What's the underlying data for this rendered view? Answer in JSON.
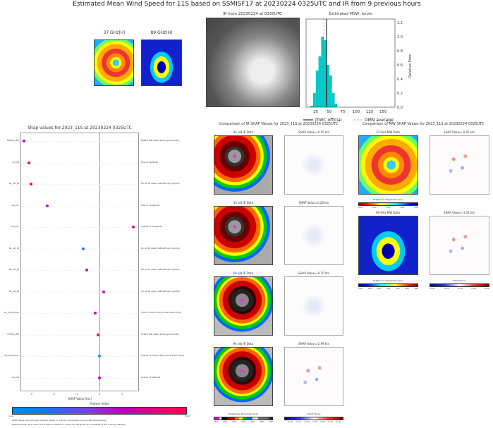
{
  "title": "Estimated Mean Wind Speed for 11S based on SSMISF17 at 20230224 0325UTC and IR from 9 previous hours",
  "mw_thumbs": {
    "left": "37 GHz(H)",
    "right": "89 GHz(H)"
  },
  "ir_title": "IR from 20230224 at 0330UTC",
  "chart_data": {
    "type": "bar",
    "title": "Estimated MSW, knots",
    "ylabel": "Relative Prob",
    "xlim": [
      7,
      172
    ],
    "ylim": [
      0,
      1.25
    ],
    "xticks": [
      "25",
      "50",
      "75",
      "100",
      "125",
      "150"
    ],
    "yticks": [
      "0.0",
      "0.2",
      "0.4",
      "0.6",
      "0.8",
      "1.0",
      "1.2"
    ],
    "bin_width": 5,
    "bin_starts": [
      15,
      20,
      25,
      30,
      35,
      40,
      45,
      50,
      55,
      60
    ],
    "values": [
      0.02,
      0.2,
      0.52,
      0.72,
      1.0,
      0.95,
      0.6,
      0.45,
      0.2,
      0.05
    ],
    "jtwc_official": 45,
    "dmn_average": 40,
    "legend": [
      "JTWC official",
      "DMN average"
    ],
    "bar_color": "#00c8c8"
  },
  "shap": {
    "title": "Shap values for 2023_11S at 20230224 0325UTC",
    "xlabel": "SHAP Value [kts]",
    "xticks": [
      "-3",
      "-2",
      "-1",
      "0",
      "1"
    ],
    "features": [
      {
        "name": "89GHz_MW",
        "desc": "89GHz MW data (64x64 grid points)",
        "value": -3.3,
        "color": "#c000c0"
      },
      {
        "name": "sin_lat",
        "desc": "Sine of Latitude",
        "value": -3.1,
        "color": "#ff0060"
      },
      {
        "name": "9h_old_IR",
        "desc": "9h old IR data (128x128 grid points)",
        "value": -3.0,
        "color": "#ff0060"
      },
      {
        "name": "sin_lon",
        "desc": "Sine of Longitude",
        "value": -2.3,
        "color": "#a020c0"
      },
      {
        "name": "cos_lon",
        "desc": "Cosine of Longitude",
        "value": 1.5,
        "color": "#ff0060"
      },
      {
        "name": "6h_old_IR",
        "desc": "6h old IR data (128x128 grid points)",
        "value": -0.7,
        "color": "#3070ff"
      },
      {
        "name": "0h_old_IR",
        "desc": "0h old IR data (128x128 grid points)",
        "value": -0.55,
        "color": "#b010c0"
      },
      {
        "name": "3h_old_IR",
        "desc": "3h old IR data (128x128 grid points)",
        "value": 0.2,
        "color": "#b010c0"
      },
      {
        "name": "sin_local_time",
        "desc": "Sine of Time of Day (Local Solar Time)",
        "value": -0.2,
        "color": "#d000a0"
      },
      {
        "name": "37GHz_MW",
        "desc": "37GHz MW data (64x64 grid points)",
        "value": -0.06,
        "color": "#d000a0"
      },
      {
        "name": "cos_local_time",
        "desc": "Cosine of Time of Day (Local Solar Time)",
        "value": 0.0,
        "color": "#2090ff"
      },
      {
        "name": "cos_lat",
        "desc": "Cosine of Latitude",
        "value": 0.0,
        "color": "#c000c0"
      }
    ],
    "colorbar_title": "Feature Value",
    "low": "Low",
    "high": "High",
    "note1": "SHAP Value: Amount each feature (listed on Y-axis) contributes to the predicted intensity",
    "note2": "Feature Value: The value of the feature (listed on Y-axis) for the given TC compared to the training dataset"
  },
  "ir_compare": {
    "title": "Comparison of IR SHAP Values for 2023_11S at 20230224 0325UTC",
    "rows": [
      {
        "data": "0h old IR Data",
        "shap": "SHAP Value=-0.55 kts"
      },
      {
        "data": "3h old IR Data",
        "shap": "SHAP Value=0.20 kts"
      },
      {
        "data": "6h old IR Data",
        "shap": "SHAP Value=-0.70 kts"
      },
      {
        "data": "9h old IR Data",
        "shap": "SHAP Value=-2.99 kts"
      }
    ],
    "cb_left": "Brightness Temperature [K]",
    "cb_right": "SHAP Values",
    "cb_left_ticks": [
      "180",
      "200",
      "220",
      "240",
      "260",
      "280",
      "300"
    ],
    "cb_right_ticks": [
      "-0.15",
      "-0.10",
      "-0.05",
      "0.00",
      "0.05",
      "0.10",
      "0.15"
    ]
  },
  "mw_compare": {
    "title": "Comparison of MW SHAP Values for 2023_11S at 20230224 0325UTC",
    "rows": [
      {
        "data": "37 GHz MW Data",
        "shap": "SHAP Value=-0.07 kts"
      },
      {
        "data": "89 GHz MW Data",
        "shap": "SHAP Value=-3.24 kts"
      }
    ],
    "cb_left": "Brightness Temperature [K]",
    "cb_right": "SHAP Values",
    "cb_ticks_37": [
      "200",
      "220",
      "240",
      "260",
      "280"
    ],
    "cb_ticks_89": [
      "160",
      "180",
      "200",
      "220",
      "240",
      "260",
      "280"
    ],
    "cb_right_ticks": [
      "-0.20",
      "-0.15",
      "-0.10",
      "-0.05",
      "0.00",
      "0.05",
      "0.10",
      "0.15",
      "0.20"
    ]
  }
}
